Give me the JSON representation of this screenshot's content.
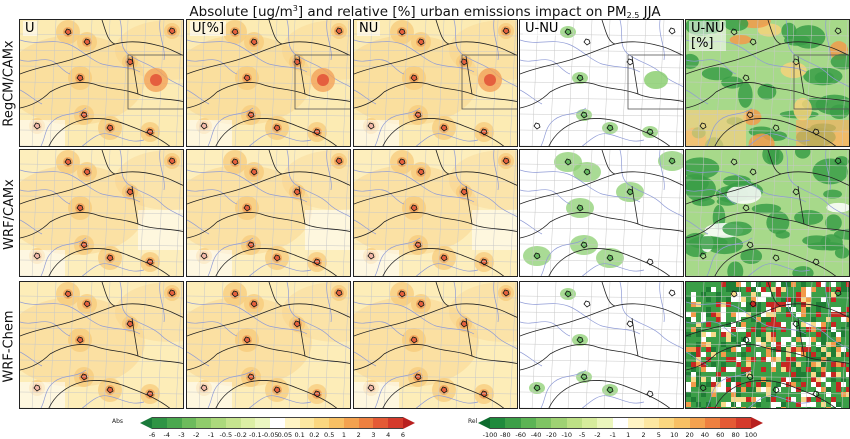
{
  "title": {
    "before_sup": "Absolute [ug/m",
    "sup": "3",
    "middle": "] and relative [%] urban emissions impact on PM",
    "sub": "2.5",
    "after": " JJA"
  },
  "rows": [
    "RegCM/CAMx",
    "WRF/CAMx",
    "WRF-Chem"
  ],
  "columns": [
    "U",
    "U[%]",
    "NU",
    "U-NU",
    "U-NU\n[%]"
  ],
  "colorbars": {
    "abs": {
      "label": "Abs",
      "ticks": [
        "-6",
        "-4",
        "-3",
        "-2",
        "-1",
        "-0.5",
        "-0.2",
        "-0.1",
        "-0.05",
        "0.05",
        "0.1",
        "0.2",
        "0.5",
        "1",
        "2",
        "3",
        "4",
        "6"
      ],
      "colors": [
        "#1a7a3a",
        "#2f9444",
        "#4aa84e",
        "#6dbb5c",
        "#90cc6b",
        "#acd97c",
        "#c6e48f",
        "#dcefa5",
        "#ecf7c2",
        "#ffffff",
        "#fff4c4",
        "#fde8a2",
        "#fbd780",
        "#f8c064",
        "#f4a24f",
        "#ee8040",
        "#e45a35",
        "#d43a2b",
        "#b8201f"
      ]
    },
    "rel": {
      "label": "Rel",
      "ticks": [
        "-100",
        "-80",
        "-60",
        "-40",
        "-20",
        "-10",
        "-5",
        "-2",
        "-1",
        "1",
        "2",
        "5",
        "10",
        "20",
        "40",
        "60",
        "80",
        "100"
      ],
      "colors": [
        "#0d6b2e",
        "#1f8a3c",
        "#3c9f47",
        "#5cb454",
        "#7fc463",
        "#9fd273",
        "#bde085",
        "#d6ec9c",
        "#ebf6bd",
        "#ffffff",
        "#fff4c4",
        "#fde8a2",
        "#fbd780",
        "#f8c064",
        "#f4a24f",
        "#ee8040",
        "#e45a35",
        "#d43a2b",
        "#b8201f"
      ]
    }
  },
  "palette": {
    "abs_base": "#fce8a6",
    "abs_mid": "#f7c978",
    "abs_hot": "#e3573a",
    "diff_green": "#8ccf72",
    "rel_green": "#3a9e47",
    "rel_orange": "#f29a4a",
    "rel_red": "#c62822",
    "river": "#8f9bd6",
    "border": "#222222",
    "grid": "#c8c8c8"
  }
}
